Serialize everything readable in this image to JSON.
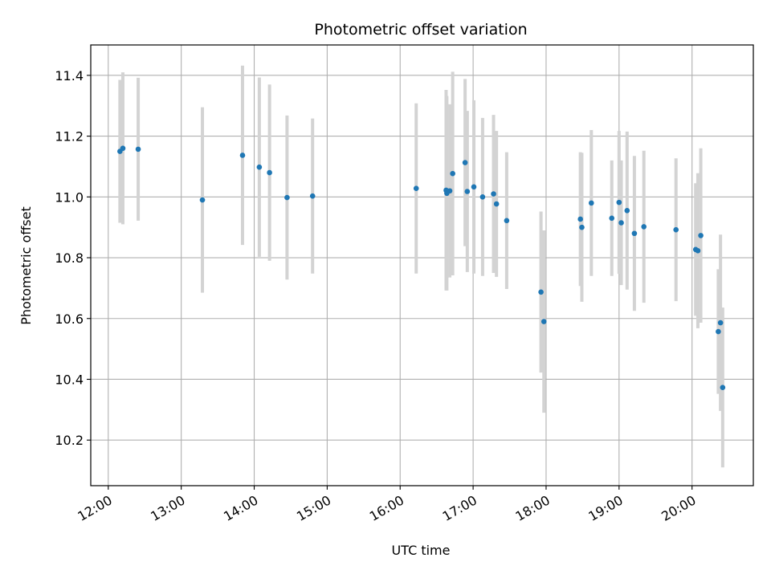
{
  "chart_data": {
    "type": "scatter",
    "title": "Photometric offset variation",
    "xlabel": "UTC time",
    "ylabel": "Photometric offset",
    "x_unit": "UTC time of day (hours)",
    "xlim": [
      11.76,
      20.84
    ],
    "ylim": [
      10.05,
      11.5
    ],
    "x_ticks": [
      {
        "value": 12,
        "label": "12:00"
      },
      {
        "value": 13,
        "label": "13:00"
      },
      {
        "value": 14,
        "label": "14:00"
      },
      {
        "value": 15,
        "label": "15:00"
      },
      {
        "value": 16,
        "label": "16:00"
      },
      {
        "value": 17,
        "label": "17:00"
      },
      {
        "value": 18,
        "label": "18:00"
      },
      {
        "value": 19,
        "label": "19:00"
      },
      {
        "value": 20,
        "label": "20:00"
      }
    ],
    "y_ticks": [
      {
        "value": 10.2,
        "label": "10.2"
      },
      {
        "value": 10.4,
        "label": "10.4"
      },
      {
        "value": 10.6,
        "label": "10.6"
      },
      {
        "value": 10.8,
        "label": "10.8"
      },
      {
        "value": 11.0,
        "label": "11.0"
      },
      {
        "value": 11.2,
        "label": "11.2"
      },
      {
        "value": 11.4,
        "label": "11.4"
      }
    ],
    "grid": true,
    "colors": {
      "point": "#1f77b4",
      "errorbar": "#d3d3d3",
      "grid": "#b0b0b0",
      "axes": "#000000"
    },
    "points": [
      {
        "x": 12.16,
        "y": 11.15,
        "err": 0.235
      },
      {
        "x": 12.2,
        "y": 11.16,
        "err": 0.25
      },
      {
        "x": 12.41,
        "y": 11.157,
        "err": 0.235
      },
      {
        "x": 13.29,
        "y": 10.99,
        "err": 0.305
      },
      {
        "x": 13.84,
        "y": 11.137,
        "err": 0.295
      },
      {
        "x": 14.07,
        "y": 11.098,
        "err": 0.295
      },
      {
        "x": 14.21,
        "y": 11.08,
        "err": 0.29
      },
      {
        "x": 14.45,
        "y": 10.998,
        "err": 0.27
      },
      {
        "x": 14.8,
        "y": 11.003,
        "err": 0.255
      },
      {
        "x": 16.22,
        "y": 11.028,
        "err": 0.28
      },
      {
        "x": 16.63,
        "y": 11.022,
        "err": 0.33
      },
      {
        "x": 16.64,
        "y": 11.012,
        "err": 0.32
      },
      {
        "x": 16.68,
        "y": 11.02,
        "err": 0.285
      },
      {
        "x": 16.72,
        "y": 11.077,
        "err": 0.335
      },
      {
        "x": 16.89,
        "y": 11.113,
        "err": 0.275
      },
      {
        "x": 16.92,
        "y": 11.018,
        "err": 0.265
      },
      {
        "x": 17.01,
        "y": 11.033,
        "err": 0.285
      },
      {
        "x": 17.13,
        "y": 11.0,
        "err": 0.26
      },
      {
        "x": 17.28,
        "y": 11.01,
        "err": 0.26
      },
      {
        "x": 17.32,
        "y": 10.977,
        "err": 0.24
      },
      {
        "x": 17.46,
        "y": 10.922,
        "err": 0.225
      },
      {
        "x": 17.93,
        "y": 10.687,
        "err": 0.265
      },
      {
        "x": 17.97,
        "y": 10.59,
        "err": 0.3
      },
      {
        "x": 18.47,
        "y": 10.927,
        "err": 0.22
      },
      {
        "x": 18.49,
        "y": 10.9,
        "err": 0.245
      },
      {
        "x": 18.62,
        "y": 10.98,
        "err": 0.24
      },
      {
        "x": 18.9,
        "y": 10.93,
        "err": 0.19
      },
      {
        "x": 19.0,
        "y": 10.982,
        "err": 0.235
      },
      {
        "x": 19.03,
        "y": 10.915,
        "err": 0.205
      },
      {
        "x": 19.11,
        "y": 10.955,
        "err": 0.26
      },
      {
        "x": 19.21,
        "y": 10.88,
        "err": 0.255
      },
      {
        "x": 19.34,
        "y": 10.902,
        "err": 0.25
      },
      {
        "x": 19.78,
        "y": 10.892,
        "err": 0.235
      },
      {
        "x": 20.05,
        "y": 10.827,
        "err": 0.218
      },
      {
        "x": 20.08,
        "y": 10.823,
        "err": 0.255
      },
      {
        "x": 20.12,
        "y": 10.873,
        "err": 0.287
      },
      {
        "x": 20.36,
        "y": 10.557,
        "err": 0.205
      },
      {
        "x": 20.39,
        "y": 10.586,
        "err": 0.29
      },
      {
        "x": 20.42,
        "y": 10.373,
        "err": 0.263
      }
    ]
  }
}
